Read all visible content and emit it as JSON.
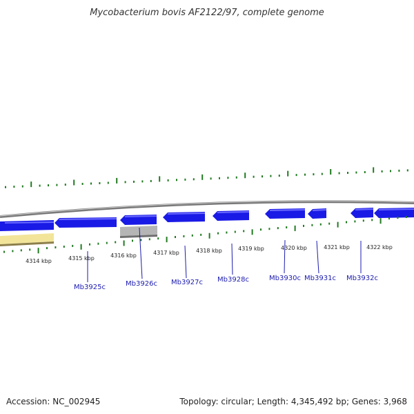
{
  "title": "Mycobacterium bovis AF2122/97, complete genome",
  "footer": {
    "accession": "Accession: NC_002945",
    "summary": "Topology: circular; Length: 4,345,492 bp; Genes: 3,968"
  },
  "colors": {
    "backbone": "#8a8a8a",
    "cds": "#1a1ae6",
    "cds_light": "#6a6aff",
    "gene_label": "#1a1ab0",
    "tick": "#1f7a1f",
    "yellow_feature": "#f2e59a",
    "gray_feature": "#b5b5b5"
  },
  "scale_labels": [
    "4314 kbp",
    "4315 kbp",
    "4316 kbp",
    "4317 kbp",
    "4318 kbp",
    "4319 kbp",
    "4320 kbp",
    "4321 kbp",
    "4322 kbp"
  ],
  "genes": [
    {
      "label": "Mb3925c"
    },
    {
      "label": "Mb3926c"
    },
    {
      "label": "Mb3927c"
    },
    {
      "label": "Mb3928c"
    },
    {
      "label": "Mb3930c"
    },
    {
      "label": "Mb3931c"
    },
    {
      "label": "Mb3932c"
    }
  ]
}
